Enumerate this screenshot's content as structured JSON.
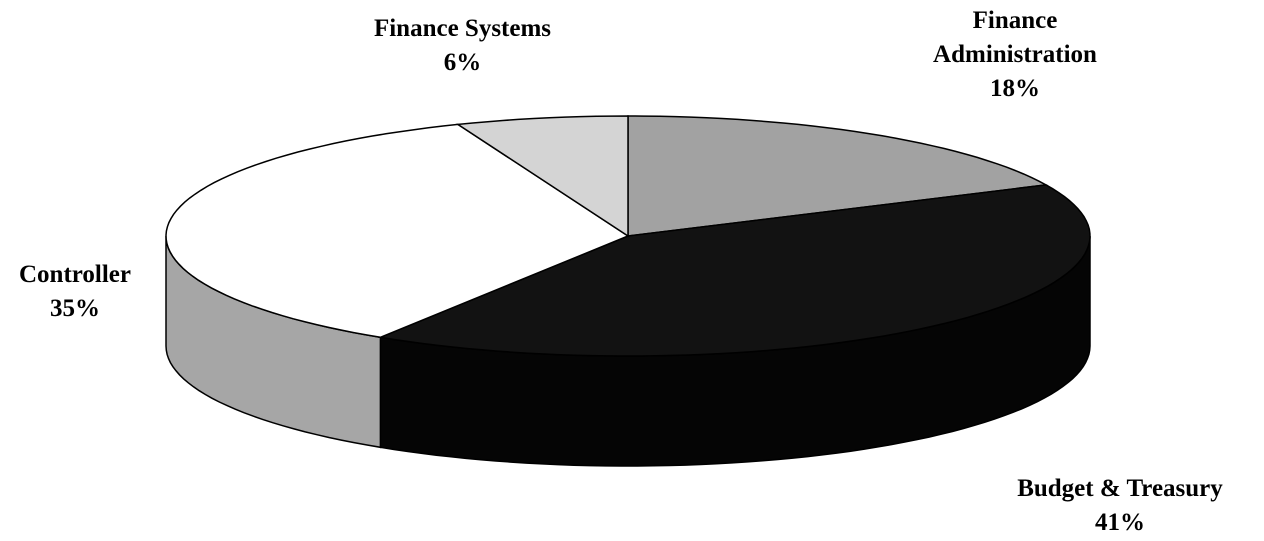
{
  "chart_data": {
    "type": "pie",
    "categories": [
      "Finance Administration",
      "Budget & Treasury",
      "Controller",
      "Finance Systems"
    ],
    "values": [
      18,
      41,
      35,
      6
    ],
    "value_labels": [
      "18%",
      "41%",
      "35%",
      "6%"
    ],
    "colors": [
      "#a2a2a2",
      "#121212",
      "#ffffff",
      "#d4d4d4"
    ],
    "side_colors": [
      "#8a8a8a",
      "#050505",
      "#a6a6a6",
      "#b8b8b8"
    ]
  }
}
